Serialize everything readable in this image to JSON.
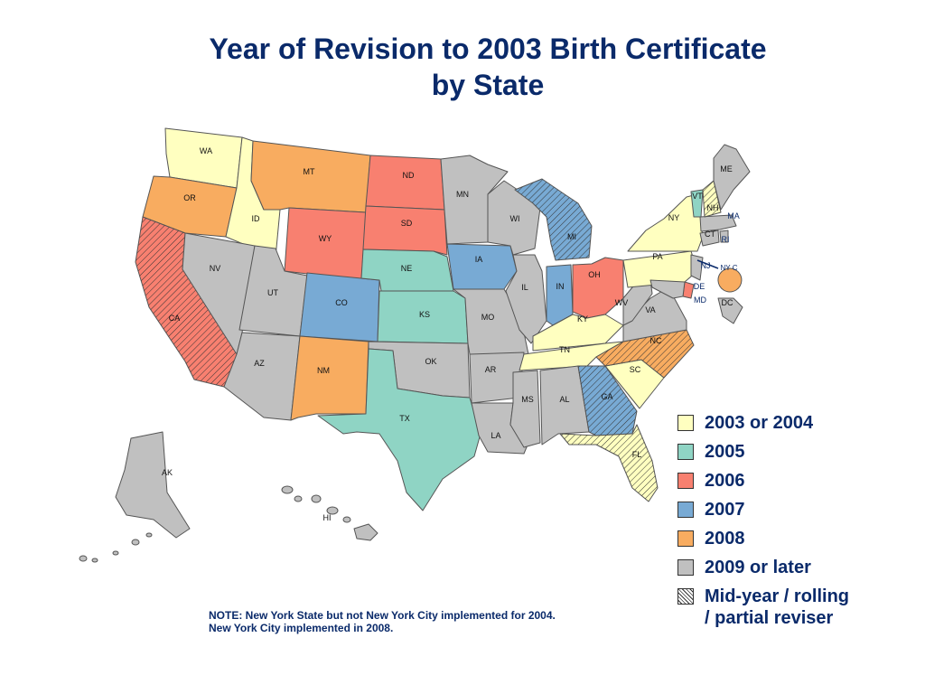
{
  "title_line1": "Year of Revision to 2003 Birth Certificate",
  "title_line2": "by State",
  "colors": {
    "y2003_2004": "#ffffc0",
    "y2005": "#8fd4c4",
    "y2006": "#f88070",
    "y2007": "#78aad4",
    "y2008": "#f8ac60",
    "y2009": "#c0c0c0"
  },
  "legend": [
    {
      "label": "2003 or 2004",
      "color": "#ffffc0",
      "hatch": false
    },
    {
      "label": "2005",
      "color": "#8fd4c4",
      "hatch": false
    },
    {
      "label": "2006",
      "color": "#f88070",
      "hatch": false
    },
    {
      "label": "2007",
      "color": "#78aad4",
      "hatch": false
    },
    {
      "label": "2008",
      "color": "#f8ac60",
      "hatch": false
    },
    {
      "label": "2009 or later",
      "color": "#c0c0c0",
      "hatch": false
    },
    {
      "label": "Mid-year / rolling / partial reviser",
      "color": "#ffffff",
      "hatch": true
    }
  ],
  "note_line1": "NOTE: New York State but not New York City implemented for 2004.",
  "note_line2": "New York City implemented in 2008.",
  "states": {
    "WA": {
      "label": "WA",
      "category": "2003 or 2004",
      "partial": false
    },
    "OR": {
      "label": "OR",
      "category": "2008",
      "partial": false
    },
    "CA": {
      "label": "CA",
      "category": "2006",
      "partial": true
    },
    "ID": {
      "label": "ID",
      "category": "2003 or 2004",
      "partial": false
    },
    "NV": {
      "label": "NV",
      "category": "2009 or later",
      "partial": false
    },
    "MT": {
      "label": "MT",
      "category": "2008",
      "partial": false
    },
    "WY": {
      "label": "WY",
      "category": "2006",
      "partial": false
    },
    "UT": {
      "label": "UT",
      "category": "2009 or later",
      "partial": false
    },
    "AZ": {
      "label": "AZ",
      "category": "2009 or later",
      "partial": false
    },
    "CO": {
      "label": "CO",
      "category": "2007",
      "partial": false
    },
    "NM": {
      "label": "NM",
      "category": "2008",
      "partial": false
    },
    "ND": {
      "label": "ND",
      "category": "2006",
      "partial": false
    },
    "SD": {
      "label": "SD",
      "category": "2006",
      "partial": false
    },
    "NE": {
      "label": "NE",
      "category": "2005",
      "partial": false
    },
    "KS": {
      "label": "KS",
      "category": "2005",
      "partial": false
    },
    "OK": {
      "label": "OK",
      "category": "2009 or later",
      "partial": false
    },
    "TX": {
      "label": "TX",
      "category": "2005",
      "partial": false
    },
    "MN": {
      "label": "MN",
      "category": "2009 or later",
      "partial": false
    },
    "IA": {
      "label": "IA",
      "category": "2007",
      "partial": false
    },
    "MO": {
      "label": "MO",
      "category": "2009 or later",
      "partial": false
    },
    "AR": {
      "label": "AR",
      "category": "2009 or later",
      "partial": false
    },
    "LA": {
      "label": "LA",
      "category": "2009 or later",
      "partial": false
    },
    "WI": {
      "label": "WI",
      "category": "2009 or later",
      "partial": false
    },
    "IL": {
      "label": "IL",
      "category": "2009 or later",
      "partial": false
    },
    "MI": {
      "label": "MI",
      "category": "2007",
      "partial": true
    },
    "IN": {
      "label": "IN",
      "category": "2007",
      "partial": false
    },
    "OH": {
      "label": "OH",
      "category": "2006",
      "partial": false
    },
    "KY": {
      "label": "KY",
      "category": "2003 or 2004",
      "partial": false
    },
    "TN": {
      "label": "TN",
      "category": "2003 or 2004",
      "partial": false
    },
    "MS": {
      "label": "MS",
      "category": "2009 or later",
      "partial": false
    },
    "AL": {
      "label": "AL",
      "category": "2009 or later",
      "partial": false
    },
    "GA": {
      "label": "GA",
      "category": "2007",
      "partial": true
    },
    "FL": {
      "label": "FL",
      "category": "2003 or 2004",
      "partial": true
    },
    "SC": {
      "label": "SC",
      "category": "2003 or 2004",
      "partial": false
    },
    "NC": {
      "label": "NC",
      "category": "2008",
      "partial": true
    },
    "VA": {
      "label": "VA",
      "category": "2009 or later",
      "partial": false
    },
    "WV": {
      "label": "WV",
      "category": "2009 or later",
      "partial": false
    },
    "PA": {
      "label": "PA",
      "category": "2003 or 2004",
      "partial": false
    },
    "NY": {
      "label": "NY",
      "category": "2003 or 2004",
      "partial": false
    },
    "NYC": {
      "label": "NY C",
      "category": "2008",
      "partial": false
    },
    "NJ": {
      "label": "NJ",
      "category": "2009 or later",
      "partial": false
    },
    "DE": {
      "label": "DE",
      "category": "2006",
      "partial": false
    },
    "MD": {
      "label": "MD",
      "category": "2009 or later",
      "partial": false
    },
    "DC": {
      "label": "DC",
      "category": "2009 or later",
      "partial": false
    },
    "CT": {
      "label": "CT",
      "category": "2009 or later",
      "partial": false
    },
    "RI": {
      "label": "RI",
      "category": "2009 or later",
      "partial": false
    },
    "MA": {
      "label": "MA",
      "category": "2009 or later",
      "partial": false
    },
    "VT": {
      "label": "VT",
      "category": "2005",
      "partial": false
    },
    "NH": {
      "label": "NH",
      "category": "2003 or 2004",
      "partial": true
    },
    "ME": {
      "label": "ME",
      "category": "2009 or later",
      "partial": false
    },
    "AK": {
      "label": "AK",
      "category": "2009 or later",
      "partial": false
    },
    "HI": {
      "label": "HI",
      "category": "2009 or later",
      "partial": false
    }
  }
}
